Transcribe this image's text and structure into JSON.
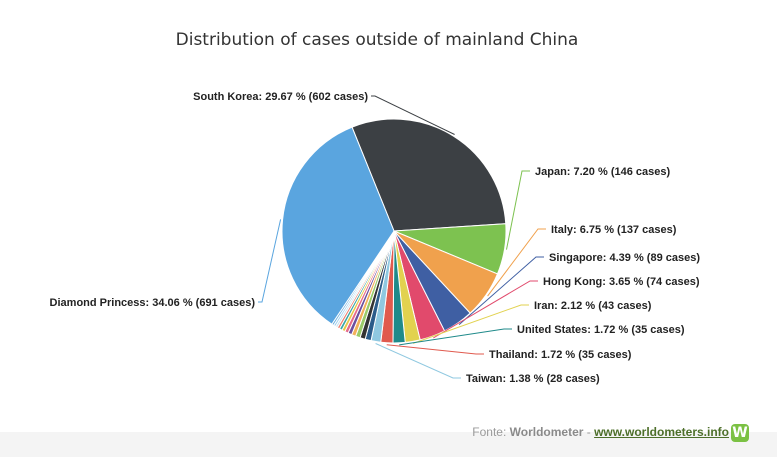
{
  "chart_data": {
    "type": "pie",
    "title": "Distribution of cases outside of mainland China",
    "start_angle_deg": -22,
    "slices": [
      {
        "name": "South Korea",
        "percent": 29.67,
        "cases": 602,
        "color": "#3c4044",
        "label": "South Korea: 29.67 % (602 cases)"
      },
      {
        "name": "Japan",
        "percent": 7.2,
        "cases": 146,
        "color": "#7dc250",
        "label": "Japan: 7.20 % (146 cases)"
      },
      {
        "name": "Italy",
        "percent": 6.75,
        "cases": 137,
        "color": "#f0a14d",
        "label": "Italy: 6.75 % (137 cases)"
      },
      {
        "name": "Singapore",
        "percent": 4.39,
        "cases": 89,
        "color": "#3f5fa3",
        "label": "Singapore: 4.39 % (89 cases)"
      },
      {
        "name": "Hong Kong",
        "percent": 3.65,
        "cases": 74,
        "color": "#e14a6c",
        "label": "Hong Kong: 3.65 % (74 cases)"
      },
      {
        "name": "Iran",
        "percent": 2.12,
        "cases": 43,
        "color": "#e2d24f",
        "label": "Iran: 2.12 % (43 cases)"
      },
      {
        "name": "United States",
        "percent": 1.72,
        "cases": 35,
        "color": "#1f8a8a",
        "label": "United States: 1.72 % (35 cases)"
      },
      {
        "name": "Thailand",
        "percent": 1.72,
        "cases": 35,
        "color": "#e05a4e",
        "label": "Thailand: 1.72 % (35 cases)"
      },
      {
        "name": "Taiwan",
        "percent": 1.38,
        "cases": 28,
        "color": "#8fc8e0",
        "label": "Taiwan: 1.38 % (28 cases)"
      },
      {
        "name": "",
        "percent": 0.85,
        "color": "#2b5c8a"
      },
      {
        "name": "",
        "percent": 0.75,
        "color": "#333333"
      },
      {
        "name": "",
        "percent": 0.65,
        "color": "#9bcb6a"
      },
      {
        "name": "",
        "percent": 0.6,
        "color": "#f3b05c"
      },
      {
        "name": "",
        "percent": 0.55,
        "color": "#6b4fa0"
      },
      {
        "name": "",
        "percent": 0.5,
        "color": "#e66b8a"
      },
      {
        "name": "",
        "percent": 0.45,
        "color": "#e8c84a"
      },
      {
        "name": "",
        "percent": 0.4,
        "color": "#3aa6a6"
      },
      {
        "name": "",
        "percent": 0.35,
        "color": "#f08070"
      },
      {
        "name": "",
        "percent": 0.3,
        "color": "#c8e0ee"
      },
      {
        "name": "",
        "percent": 0.3,
        "color": "#a0d0f0"
      },
      {
        "name": "",
        "percent": 0.3,
        "color": "#6aaedc"
      },
      {
        "name": "Diamond Princess",
        "percent": 34.06,
        "cases": 691,
        "color": "#5aa5df",
        "label": "Diamond Princess: 34.06 % (691 cases)"
      }
    ]
  },
  "source": {
    "prefix": "Fonte: ",
    "brand": "Worldometer",
    "separator": " - ",
    "url": "www.worldometers.info",
    "logo_letter": "W"
  }
}
